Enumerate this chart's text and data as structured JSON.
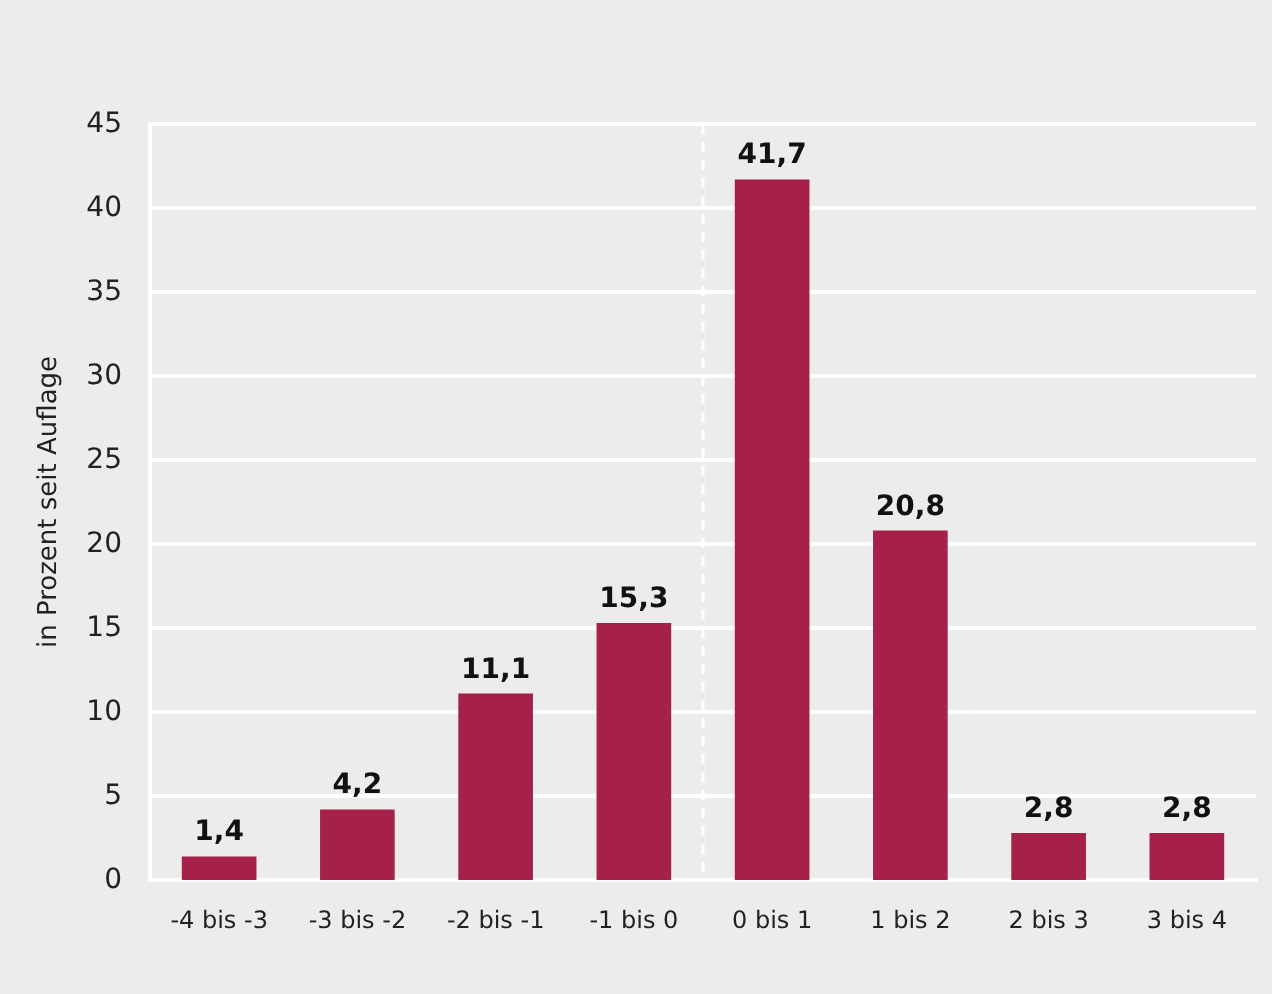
{
  "chart_data": {
    "type": "bar",
    "ylabel": "in Prozent seit Auflage",
    "categories": [
      "-4 bis -3",
      "-3 bis -2",
      "-2 bis -1",
      "-1 bis 0",
      "0 bis 1",
      "1 bis 2",
      "2 bis 3",
      "3 bis 4"
    ],
    "values": [
      1.4,
      4.2,
      11.1,
      15.3,
      41.7,
      20.8,
      2.8,
      2.8
    ],
    "value_labels": [
      "1,4",
      "4,2",
      "11,1",
      "15,3",
      "41,7",
      "20,8",
      "2,8",
      "2,8"
    ],
    "color": "#a52149",
    "ylim": [
      0,
      45
    ],
    "yticks": [
      0,
      5,
      10,
      15,
      20,
      25,
      30,
      35,
      40,
      45
    ],
    "grid": "y",
    "ref_lines": [
      {
        "axis": "x",
        "value": "0 bis 1",
        "color": "#ffffff",
        "line_style": "dashed"
      }
    ]
  }
}
